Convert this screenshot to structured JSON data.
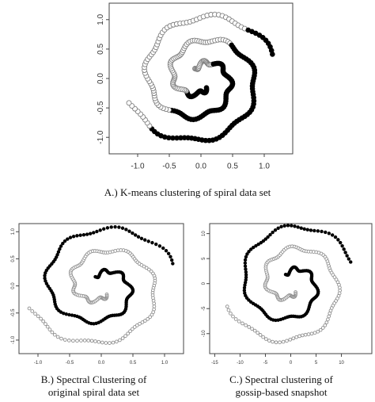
{
  "figure": {
    "captions": {
      "a": "A.) K-means clustering of spiral data set",
      "b_line1": "B.) Spectral Clustering of",
      "b_line2": "original spiral data set",
      "c_line1": "C.) Spectral clustering of",
      "c_line2": "gossip-based snapshot"
    }
  },
  "chart_data": [
    {
      "id": "a",
      "type": "scatter",
      "title": "A.) K-means clustering of spiral data set",
      "xlabel": "",
      "ylabel": "",
      "xlim": [
        -1.45,
        1.45
      ],
      "ylim": [
        -1.28,
        1.28
      ],
      "xticks": [
        -1.0,
        -0.5,
        0.0,
        0.5,
        1.0
      ],
      "xtick_labels": [
        "-1.0",
        "-0.5",
        "0.0",
        "0.5",
        "1.0"
      ],
      "yticks": [
        -1.0,
        -0.5,
        0.0,
        0.5,
        1.0
      ],
      "ytick_labels": [
        "-1.0",
        "-0.5",
        "0.0",
        "0.5",
        "1.0"
      ],
      "grid": false,
      "cluster_colors": {
        "open": "#808080",
        "filled": "#000000"
      },
      "spiral": {
        "arms": 2,
        "turns": 1.5,
        "t_min": 0.15,
        "t_max": 1.0,
        "r_max": 1.2,
        "points_per_arm": 150
      },
      "split": "half-plane",
      "series": [
        {
          "style": "open",
          "description": "upper-left cluster"
        },
        {
          "style": "filled",
          "description": "lower-right cluster"
        }
      ]
    },
    {
      "id": "b",
      "type": "scatter",
      "title": "B.) Spectral Clustering of original spiral data set",
      "xlabel": "",
      "ylabel": "",
      "xlim": [
        -1.3,
        1.3
      ],
      "ylim": [
        -1.25,
        1.15
      ],
      "xticks": [
        -1.0,
        -0.5,
        0.0,
        0.5,
        1.0
      ],
      "xtick_labels": [
        "-1.0",
        "-0.5",
        "0.0",
        "0.5",
        "1.0"
      ],
      "yticks": [
        -1.0,
        -0.5,
        0.0,
        0.5,
        1.0
      ],
      "ytick_labels": [
        "-1.0",
        "-0.5",
        "0.0",
        "0.5",
        "1.0"
      ],
      "grid": false,
      "cluster_colors": {
        "open": "#909090",
        "filled": "#000000"
      },
      "spiral": {
        "arms": 2,
        "turns": 1.5,
        "t_min": 0.15,
        "t_max": 1.0,
        "r_max": 1.2,
        "points_per_arm": 150
      },
      "split": "by-arm",
      "series": [
        {
          "style": "open",
          "description": "arm 1"
        },
        {
          "style": "filled",
          "description": "arm 2"
        }
      ]
    },
    {
      "id": "c",
      "type": "scatter",
      "title": "C.) Spectral clustering of gossip-based snapshot",
      "xlabel": "",
      "ylabel": "",
      "xlim": [
        -16,
        16
      ],
      "ylim": [
        -14,
        12
      ],
      "xticks": [
        -15,
        -10,
        -5,
        0,
        5,
        10
      ],
      "xtick_labels": [
        "-15",
        "-10",
        "-5",
        "0",
        "5",
        "10"
      ],
      "yticks": [
        -10,
        -5,
        0,
        5,
        10
      ],
      "ytick_labels": [
        "-10",
        "-5",
        "0",
        "5",
        "10"
      ],
      "grid": false,
      "cluster_colors": {
        "open": "#909090",
        "filled": "#000000"
      },
      "spiral": {
        "arms": 2,
        "turns": 1.5,
        "t_min": 0.15,
        "t_max": 1.0,
        "r_max": 13.0,
        "points_per_arm": 140
      },
      "split": "by-arm",
      "series": [
        {
          "style": "open",
          "description": "arm 1"
        },
        {
          "style": "filled",
          "description": "arm 2"
        }
      ]
    }
  ]
}
